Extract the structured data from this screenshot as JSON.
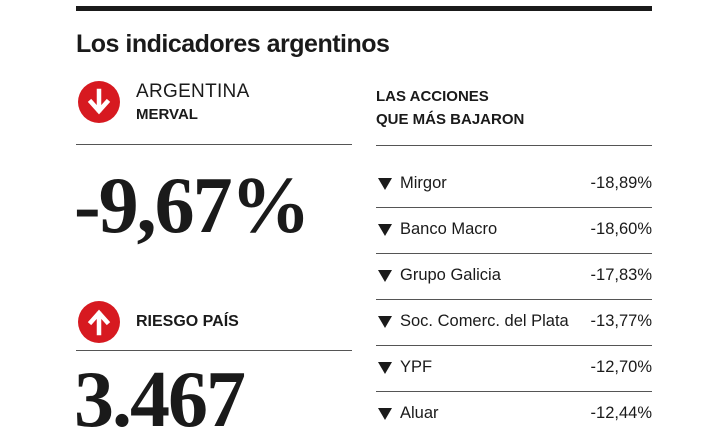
{
  "headline": "Los indicadores argentinos",
  "merval": {
    "country": "ARGENTINA",
    "index": "MERVAL",
    "value": "-9,67%",
    "arrow_icon": "arrow-down-icon"
  },
  "riesgo": {
    "label": "RIESGO PAÍS",
    "value": "3.467",
    "arrow_icon": "arrow-up-icon"
  },
  "acciones": {
    "title_line1": "LAS ACCIONES",
    "title_line2": "QUE MÁS BAJARON",
    "rows": [
      {
        "name": "Mirgor",
        "change": "-18,89%"
      },
      {
        "name": "Banco Macro",
        "change": "-18,60%"
      },
      {
        "name": "Grupo Galicia",
        "change": "-17,83%"
      },
      {
        "name": "Soc. Comerc. del Plata",
        "change": "-13,77%"
      },
      {
        "name": "YPF",
        "change": "-12,70%"
      },
      {
        "name": "Aluar",
        "change": "-12,44%"
      }
    ]
  },
  "colors": {
    "accent": "#d71920",
    "text": "#1a1a1a"
  }
}
